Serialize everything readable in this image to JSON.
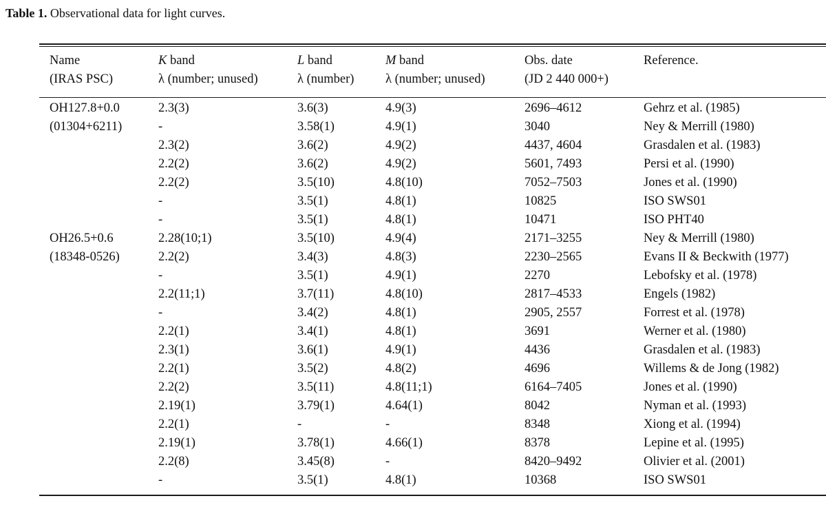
{
  "caption": {
    "label": "Table 1.",
    "text": "Observational data for light curves."
  },
  "headers": {
    "name": {
      "line1": "Name",
      "line2": "(IRAS PSC)"
    },
    "k_band": {
      "letter": "K",
      "rest": " band",
      "line2": "λ (number; unused)"
    },
    "l_band": {
      "letter": "L",
      "rest": " band",
      "line2": "λ (number)"
    },
    "m_band": {
      "letter": "M",
      "rest": " band",
      "line2": "λ (number; unused)"
    },
    "obs_date": {
      "line1": "Obs. date",
      "line2": "(JD 2 440 000+)"
    },
    "reference": {
      "line1": "Reference.",
      "line2": ""
    }
  },
  "rows": [
    {
      "name": "OH127.8+0.0",
      "k": "2.3(3)",
      "l": "3.6(3)",
      "m": "4.9(3)",
      "date": "2696–4612",
      "ref": "Gehrz et al. (1985)"
    },
    {
      "name": "(01304+6211)",
      "k": "-",
      "l": "3.58(1)",
      "m": "4.9(1)",
      "date": "3040",
      "ref": "Ney & Merrill (1980)"
    },
    {
      "name": "",
      "k": "2.3(2)",
      "l": "3.6(2)",
      "m": "4.9(2)",
      "date": "4437, 4604",
      "ref": "Grasdalen et al. (1983)"
    },
    {
      "name": "",
      "k": "2.2(2)",
      "l": "3.6(2)",
      "m": "4.9(2)",
      "date": "5601, 7493",
      "ref": "Persi et al. (1990)"
    },
    {
      "name": "",
      "k": "2.2(2)",
      "l": "3.5(10)",
      "m": "4.8(10)",
      "date": "7052–7503",
      "ref": "Jones et al. (1990)"
    },
    {
      "name": "",
      "k": "-",
      "l": "3.5(1)",
      "m": "4.8(1)",
      "date": "10825",
      "ref": "ISO SWS01"
    },
    {
      "name": "",
      "k": "-",
      "l": "3.5(1)",
      "m": "4.8(1)",
      "date": "10471",
      "ref": "ISO PHT40"
    },
    {
      "name": "OH26.5+0.6",
      "k": "2.28(10;1)",
      "l": "3.5(10)",
      "m": "4.9(4)",
      "date": "2171–3255",
      "ref": "Ney & Merrill (1980)"
    },
    {
      "name": "(18348-0526)",
      "k": "2.2(2)",
      "l": "3.4(3)",
      "m": "4.8(3)",
      "date": "2230–2565",
      "ref": "Evans II & Beckwith (1977)"
    },
    {
      "name": "",
      "k": "-",
      "l": "3.5(1)",
      "m": "4.9(1)",
      "date": "2270",
      "ref": "Lebofsky et al. (1978)"
    },
    {
      "name": "",
      "k": "2.2(11;1)",
      "l": "3.7(11)",
      "m": "4.8(10)",
      "date": "2817–4533",
      "ref": "Engels (1982)"
    },
    {
      "name": "",
      "k": "-",
      "l": "3.4(2)",
      "m": "4.8(1)",
      "date": "2905, 2557",
      "ref": "Forrest et al. (1978)"
    },
    {
      "name": "",
      "k": "2.2(1)",
      "l": "3.4(1)",
      "m": "4.8(1)",
      "date": "3691",
      "ref": "Werner et al. (1980)"
    },
    {
      "name": "",
      "k": "2.3(1)",
      "l": "3.6(1)",
      "m": "4.9(1)",
      "date": "4436",
      "ref": "Grasdalen et al. (1983)"
    },
    {
      "name": "",
      "k": "2.2(1)",
      "l": "3.5(2)",
      "m": "4.8(2)",
      "date": "4696",
      "ref": "Willems & de Jong (1982)"
    },
    {
      "name": "",
      "k": "2.2(2)",
      "l": "3.5(11)",
      "m": "4.8(11;1)",
      "date": "6164–7405",
      "ref": "Jones et al. (1990)"
    },
    {
      "name": "",
      "k": "2.19(1)",
      "l": "3.79(1)",
      "m": "4.64(1)",
      "date": "8042",
      "ref": "Nyman et al. (1993)"
    },
    {
      "name": "",
      "k": "2.2(1)",
      "l": "-",
      "m": "-",
      "date": "8348",
      "ref": "Xiong et al. (1994)"
    },
    {
      "name": "",
      "k": "2.19(1)",
      "l": "3.78(1)",
      "m": "4.66(1)",
      "date": "8378",
      "ref": "Lepine et al. (1995)"
    },
    {
      "name": "",
      "k": "2.2(8)",
      "l": "3.45(8)",
      "m": "-",
      "date": "8420–9492",
      "ref": "Olivier et al. (2001)"
    },
    {
      "name": "",
      "k": "-",
      "l": "3.5(1)",
      "m": "4.8(1)",
      "date": "10368",
      "ref": "ISO SWS01"
    }
  ]
}
